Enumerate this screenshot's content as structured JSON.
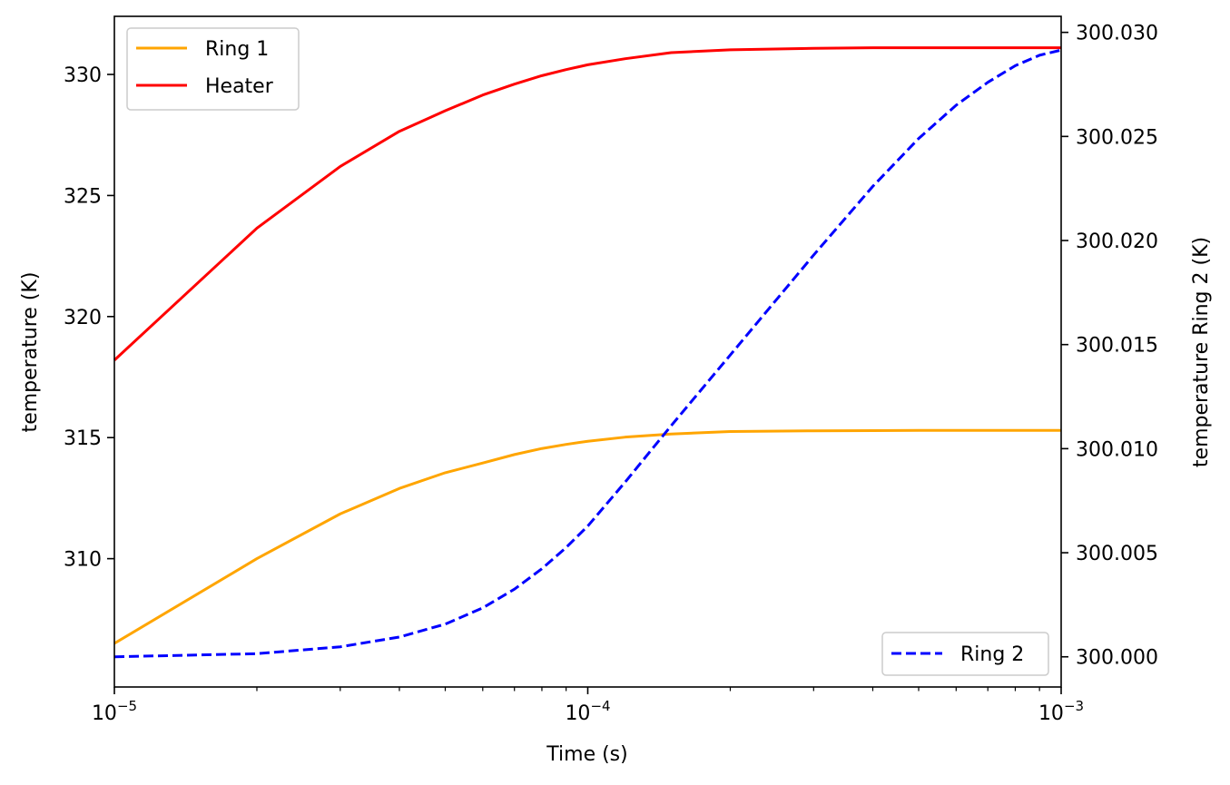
{
  "chart_data": {
    "type": "line",
    "x_axis": {
      "label": "Time (s)",
      "scale": "log",
      "range": [
        1e-05,
        0.001
      ],
      "major_ticks": [
        {
          "value": 1e-05,
          "base": "10",
          "exp": "−5"
        },
        {
          "value": 0.0001,
          "base": "10",
          "exp": "−4"
        },
        {
          "value": 0.001,
          "base": "10",
          "exp": "−3"
        }
      ]
    },
    "left_axis": {
      "label": "temperature (K)",
      "range": [
        304.7,
        332.4
      ],
      "ticks": [
        310,
        315,
        320,
        325,
        330
      ],
      "tick_labels": [
        "310",
        "315",
        "320",
        "325",
        "330"
      ]
    },
    "right_axis": {
      "label": "temperature Ring 2 (K)",
      "range": [
        299.99855,
        300.03077
      ],
      "ticks": [
        300.0,
        300.005,
        300.01,
        300.015,
        300.02,
        300.025,
        300.03
      ],
      "tick_labels": [
        "300.000",
        "300.005",
        "300.010",
        "300.015",
        "300.020",
        "300.025",
        "300.030"
      ]
    },
    "x": [
      1e-05,
      2e-05,
      3e-05,
      4e-05,
      5e-05,
      6e-05,
      7e-05,
      8e-05,
      9e-05,
      0.0001,
      0.00012,
      0.00015,
      0.0002,
      0.0003,
      0.0004,
      0.0005,
      0.0006,
      0.0007,
      0.0008,
      0.0009,
      0.001
    ],
    "series": [
      {
        "name": "Ring 1",
        "axis": "left",
        "color": "#ffa500",
        "dash": "solid",
        "values": [
          306.5,
          310.0,
          311.85,
          312.9,
          313.55,
          313.95,
          314.3,
          314.55,
          314.72,
          314.85,
          315.02,
          315.15,
          315.25,
          315.28,
          315.29,
          315.3,
          315.3,
          315.3,
          315.3,
          315.3,
          315.3
        ]
      },
      {
        "name": "Heater",
        "axis": "left",
        "color": "#ff0000",
        "dash": "solid",
        "values": [
          318.2,
          323.65,
          326.2,
          327.65,
          328.5,
          329.15,
          329.6,
          329.95,
          330.2,
          330.4,
          330.65,
          330.9,
          331.02,
          331.08,
          331.1,
          331.1,
          331.1,
          331.1,
          331.1,
          331.1,
          331.1
        ]
      },
      {
        "name": "Ring 2",
        "axis": "right",
        "color": "#0000ff",
        "dash": "dashed",
        "values": [
          300.0,
          300.00015,
          300.00048,
          300.00095,
          300.00157,
          300.00235,
          300.00325,
          300.00423,
          300.00525,
          300.00628,
          300.0084,
          300.0111,
          300.0145,
          300.0193,
          300.0226,
          300.0249,
          300.0265,
          300.0276,
          300.0284,
          300.0289,
          300.02915
        ]
      }
    ],
    "legends": [
      {
        "placement": "upper-left",
        "entries": [
          "Ring 1",
          "Heater"
        ]
      },
      {
        "placement": "lower-right",
        "entries": [
          "Ring 2"
        ]
      }
    ],
    "grid": false
  }
}
